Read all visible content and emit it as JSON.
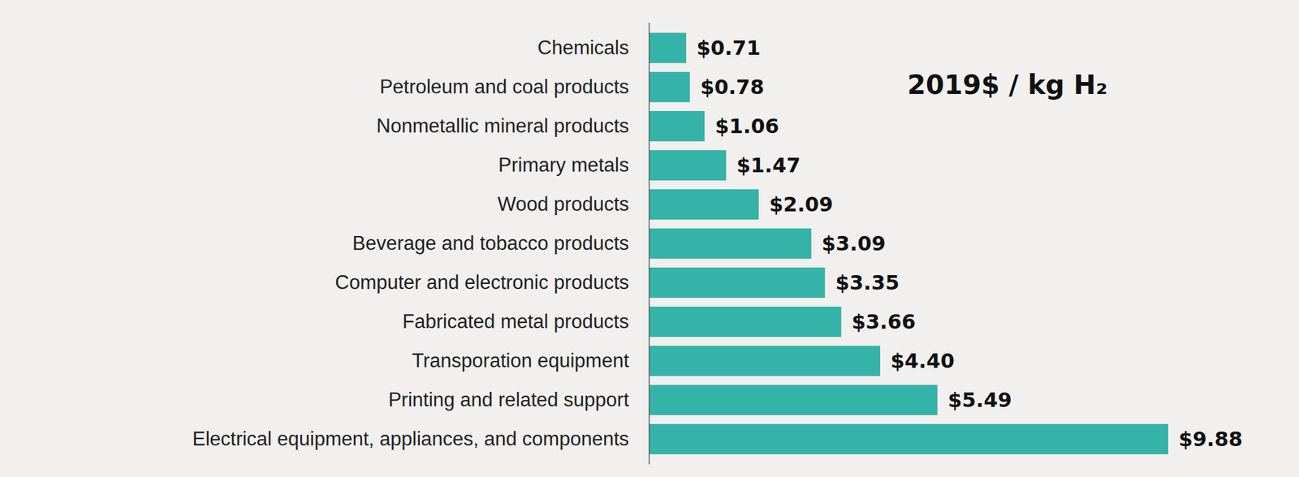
{
  "chart_data": {
    "type": "bar",
    "orientation": "horizontal",
    "annotation": "2019$ / kg H₂",
    "categories": [
      "Chemicals",
      "Petroleum and coal products",
      "Nonmetallic mineral products",
      "Primary metals",
      "Wood products",
      "Beverage and tobacco products",
      "Computer and electronic products",
      "Fabricated metal products",
      "Transporation equipment",
      "Printing and related support",
      "Electrical equipment, appliances, and components"
    ],
    "values": [
      0.71,
      0.78,
      1.06,
      1.47,
      2.09,
      3.09,
      3.35,
      3.66,
      4.4,
      5.49,
      9.88
    ],
    "value_labels": [
      "$0.71",
      "$0.78",
      "$1.06",
      "$1.47",
      "$2.09",
      "$3.09",
      "$3.35",
      "$3.66",
      "$4.40",
      "$5.49",
      "$9.88"
    ],
    "color": "#36b3a8",
    "xlim": [
      0,
      9.88
    ],
    "data_labels": true,
    "tick_labels": "y",
    "grid": false
  }
}
